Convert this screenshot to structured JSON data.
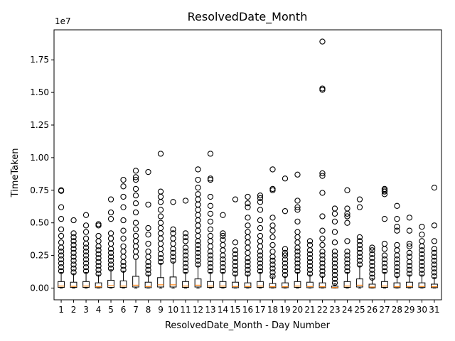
{
  "chart_data": {
    "type": "box",
    "title": "ResolvedDate_Month",
    "xlabel": "ResolvedDate_Month - Day Number",
    "ylabel": "TimeTaken",
    "offset_text": "1e7",
    "scale_factor": 10000000,
    "ylim": [
      -0.09,
      1.98
    ],
    "yticks": [
      0.0,
      0.25,
      0.5,
      0.75,
      1.0,
      1.25,
      1.5,
      1.75
    ],
    "ytick_labels": [
      "0.00",
      "0.25",
      "0.50",
      "0.75",
      "1.00",
      "1.25",
      "1.50",
      "1.75"
    ],
    "categories": [
      "1",
      "2",
      "3",
      "4",
      "5",
      "6",
      "7",
      "8",
      "9",
      "10",
      "11",
      "12",
      "13",
      "14",
      "15",
      "16",
      "17",
      "18",
      "19",
      "20",
      "21",
      "22",
      "23",
      "24",
      "25",
      "26",
      "27",
      "28",
      "29",
      "30",
      "31"
    ],
    "boxes": [
      {
        "q1": 0.005,
        "median": 0.015,
        "q3": 0.05,
        "wlo": 0,
        "whi": 0.12,
        "outliers": [
          0.13,
          0.16,
          0.19,
          0.22,
          0.25,
          0.28,
          0.31,
          0.35,
          0.4,
          0.45,
          0.53,
          0.62,
          0.75,
          0.745
        ]
      },
      {
        "q1": 0.005,
        "median": 0.013,
        "q3": 0.045,
        "wlo": 0,
        "whi": 0.11,
        "outliers": [
          0.12,
          0.15,
          0.18,
          0.21,
          0.24,
          0.27,
          0.3,
          0.33,
          0.36,
          0.39,
          0.42,
          0.52
        ]
      },
      {
        "q1": 0.005,
        "median": 0.015,
        "q3": 0.05,
        "wlo": 0,
        "whi": 0.12,
        "outliers": [
          0.13,
          0.16,
          0.19,
          0.22,
          0.25,
          0.28,
          0.31,
          0.34,
          0.38,
          0.43,
          0.48,
          0.56
        ]
      },
      {
        "q1": 0.003,
        "median": 0.01,
        "q3": 0.04,
        "wlo": 0,
        "whi": 0.1,
        "outliers": [
          0.11,
          0.14,
          0.17,
          0.2,
          0.23,
          0.26,
          0.29,
          0.32,
          0.36,
          0.4,
          0.48,
          0.49
        ]
      },
      {
        "q1": 0.005,
        "median": 0.018,
        "q3": 0.06,
        "wlo": 0,
        "whi": 0.14,
        "outliers": [
          0.15,
          0.18,
          0.21,
          0.24,
          0.27,
          0.3,
          0.34,
          0.38,
          0.42,
          0.53,
          0.58,
          0.68
        ]
      },
      {
        "q1": 0.005,
        "median": 0.015,
        "q3": 0.055,
        "wlo": 0,
        "whi": 0.13,
        "outliers": [
          0.14,
          0.17,
          0.2,
          0.24,
          0.28,
          0.32,
          0.38,
          0.44,
          0.52,
          0.62,
          0.7,
          0.78,
          0.83
        ]
      },
      {
        "q1": 0.008,
        "median": 0.022,
        "q3": 0.09,
        "wlo": 0,
        "whi": 0.22,
        "outliers": [
          0.24,
          0.28,
          0.32,
          0.36,
          0.4,
          0.45,
          0.5,
          0.58,
          0.65,
          0.71,
          0.76,
          0.83,
          0.85,
          0.9
        ]
      },
      {
        "q1": 0.003,
        "median": 0.012,
        "q3": 0.045,
        "wlo": 0,
        "whi": 0.1,
        "outliers": [
          0.11,
          0.14,
          0.17,
          0.2,
          0.24,
          0.28,
          0.34,
          0.41,
          0.46,
          0.64,
          0.89
        ]
      },
      {
        "q1": 0.008,
        "median": 0.025,
        "q3": 0.08,
        "wlo": 0,
        "whi": 0.19,
        "outliers": [
          0.2,
          0.23,
          0.26,
          0.3,
          0.34,
          0.38,
          0.42,
          0.46,
          0.5,
          0.55,
          0.6,
          0.66,
          0.7,
          0.74,
          1.03
        ]
      },
      {
        "q1": 0.008,
        "median": 0.025,
        "q3": 0.085,
        "wlo": 0,
        "whi": 0.2,
        "outliers": [
          0.21,
          0.24,
          0.27,
          0.3,
          0.34,
          0.38,
          0.42,
          0.45,
          0.66
        ]
      },
      {
        "q1": 0.005,
        "median": 0.015,
        "q3": 0.05,
        "wlo": 0,
        "whi": 0.12,
        "outliers": [
          0.13,
          0.16,
          0.19,
          0.22,
          0.25,
          0.28,
          0.31,
          0.36,
          0.39,
          0.42,
          0.67
        ]
      },
      {
        "q1": 0.008,
        "median": 0.022,
        "q3": 0.07,
        "wlo": 0,
        "whi": 0.17,
        "outliers": [
          0.18,
          0.21,
          0.24,
          0.27,
          0.3,
          0.33,
          0.36,
          0.4,
          0.44,
          0.48,
          0.52,
          0.56,
          0.6,
          0.64,
          0.68,
          0.72,
          0.77,
          0.83,
          0.91
        ]
      },
      {
        "q1": 0.005,
        "median": 0.015,
        "q3": 0.05,
        "wlo": 0,
        "whi": 0.12,
        "outliers": [
          0.13,
          0.16,
          0.19,
          0.22,
          0.25,
          0.28,
          0.32,
          0.36,
          0.4,
          0.45,
          0.51,
          0.57,
          0.63,
          0.7,
          0.83,
          0.84,
          1.03
        ]
      },
      {
        "q1": 0.005,
        "median": 0.015,
        "q3": 0.05,
        "wlo": 0,
        "whi": 0.12,
        "outliers": [
          0.13,
          0.16,
          0.19,
          0.22,
          0.25,
          0.29,
          0.33,
          0.37,
          0.4,
          0.42,
          0.56
        ]
      },
      {
        "q1": 0.003,
        "median": 0.012,
        "q3": 0.045,
        "wlo": 0,
        "whi": 0.1,
        "outliers": [
          0.11,
          0.14,
          0.17,
          0.2,
          0.23,
          0.26,
          0.29,
          0.35,
          0.68
        ]
      },
      {
        "q1": 0.004,
        "median": 0.012,
        "q3": 0.04,
        "wlo": 0,
        "whi": 0.1,
        "outliers": [
          0.11,
          0.14,
          0.17,
          0.2,
          0.23,
          0.27,
          0.31,
          0.35,
          0.39,
          0.43,
          0.48,
          0.54,
          0.62,
          0.65,
          0.7
        ]
      },
      {
        "q1": 0.005,
        "median": 0.015,
        "q3": 0.05,
        "wlo": 0,
        "whi": 0.12,
        "outliers": [
          0.13,
          0.16,
          0.19,
          0.22,
          0.25,
          0.28,
          0.32,
          0.36,
          0.4,
          0.46,
          0.52,
          0.6,
          0.66,
          0.69,
          0.71
        ]
      },
      {
        "q1": 0.003,
        "median": 0.01,
        "q3": 0.035,
        "wlo": 0,
        "whi": 0.085,
        "outliers": [
          0.09,
          0.12,
          0.15,
          0.18,
          0.21,
          0.24,
          0.28,
          0.33,
          0.39,
          0.44,
          0.48,
          0.54,
          0.75,
          0.76,
          0.91
        ]
      },
      {
        "q1": 0.003,
        "median": 0.01,
        "q3": 0.04,
        "wlo": 0,
        "whi": 0.09,
        "outliers": [
          0.1,
          0.13,
          0.16,
          0.19,
          0.22,
          0.25,
          0.27,
          0.3,
          0.59,
          0.84
        ]
      },
      {
        "q1": 0.005,
        "median": 0.015,
        "q3": 0.05,
        "wlo": 0,
        "whi": 0.12,
        "outliers": [
          0.13,
          0.16,
          0.19,
          0.22,
          0.25,
          0.28,
          0.31,
          0.35,
          0.39,
          0.43,
          0.51,
          0.6,
          0.62,
          0.67,
          0.87
        ]
      },
      {
        "q1": 0.003,
        "median": 0.012,
        "q3": 0.045,
        "wlo": 0,
        "whi": 0.1,
        "outliers": [
          0.11,
          0.14,
          0.17,
          0.2,
          0.23,
          0.26,
          0.29,
          0.33,
          0.36
        ]
      },
      {
        "q1": 0.003,
        "median": 0.01,
        "q3": 0.04,
        "wlo": 0,
        "whi": 0.09,
        "outliers": [
          0.1,
          0.13,
          0.16,
          0.19,
          0.22,
          0.25,
          0.28,
          0.33,
          0.38,
          0.44,
          0.55,
          0.73,
          0.86,
          0.88,
          1.52,
          1.53,
          1.89
        ]
      },
      {
        "q1": 0.001,
        "median": 0.004,
        "q3": 0.015,
        "wlo": 0,
        "whi": 0.035,
        "outliers": [
          0.04,
          0.07,
          0.1,
          0.13,
          0.16,
          0.19,
          0.22,
          0.25,
          0.28,
          0.35,
          0.43,
          0.51,
          0.57,
          0.61
        ]
      },
      {
        "q1": 0.005,
        "median": 0.015,
        "q3": 0.05,
        "wlo": 0,
        "whi": 0.12,
        "outliers": [
          0.13,
          0.16,
          0.19,
          0.22,
          0.25,
          0.28,
          0.36,
          0.5,
          0.55,
          0.57,
          0.61,
          0.75
        ]
      },
      {
        "q1": 0.008,
        "median": 0.022,
        "q3": 0.07,
        "wlo": 0,
        "whi": 0.17,
        "outliers": [
          0.18,
          0.21,
          0.24,
          0.27,
          0.3,
          0.33,
          0.36,
          0.39,
          0.62,
          0.68
        ]
      },
      {
        "q1": 0.002,
        "median": 0.008,
        "q3": 0.03,
        "wlo": 0,
        "whi": 0.075,
        "outliers": [
          0.08,
          0.11,
          0.14,
          0.17,
          0.2,
          0.23,
          0.26,
          0.29,
          0.31
        ]
      },
      {
        "q1": 0.005,
        "median": 0.015,
        "q3": 0.05,
        "wlo": 0,
        "whi": 0.12,
        "outliers": [
          0.13,
          0.16,
          0.19,
          0.22,
          0.25,
          0.3,
          0.34,
          0.53,
          0.72,
          0.74,
          0.75,
          0.76
        ]
      },
      {
        "q1": 0.003,
        "median": 0.01,
        "q3": 0.04,
        "wlo": 0,
        "whi": 0.09,
        "outliers": [
          0.1,
          0.13,
          0.16,
          0.19,
          0.22,
          0.25,
          0.29,
          0.33,
          0.44,
          0.47,
          0.53,
          0.63
        ]
      },
      {
        "q1": 0.004,
        "median": 0.012,
        "q3": 0.045,
        "wlo": 0,
        "whi": 0.1,
        "outliers": [
          0.11,
          0.14,
          0.17,
          0.2,
          0.24,
          0.27,
          0.32,
          0.34,
          0.44,
          0.54
        ]
      },
      {
        "q1": 0.004,
        "median": 0.012,
        "q3": 0.04,
        "wlo": 0,
        "whi": 0.1,
        "outliers": [
          0.11,
          0.14,
          0.17,
          0.2,
          0.23,
          0.26,
          0.29,
          0.32,
          0.36,
          0.41,
          0.47
        ]
      },
      {
        "q1": 0.003,
        "median": 0.01,
        "q3": 0.03,
        "wlo": 0,
        "whi": 0.08,
        "outliers": [
          0.09,
          0.12,
          0.15,
          0.18,
          0.21,
          0.24,
          0.27,
          0.3,
          0.36,
          0.48,
          0.77
        ]
      }
    ],
    "colors": {
      "box": "#000000",
      "median": "#ff7f0e",
      "flier": "#000000",
      "background": "#ffffff"
    },
    "grid": false,
    "legend": "none"
  }
}
